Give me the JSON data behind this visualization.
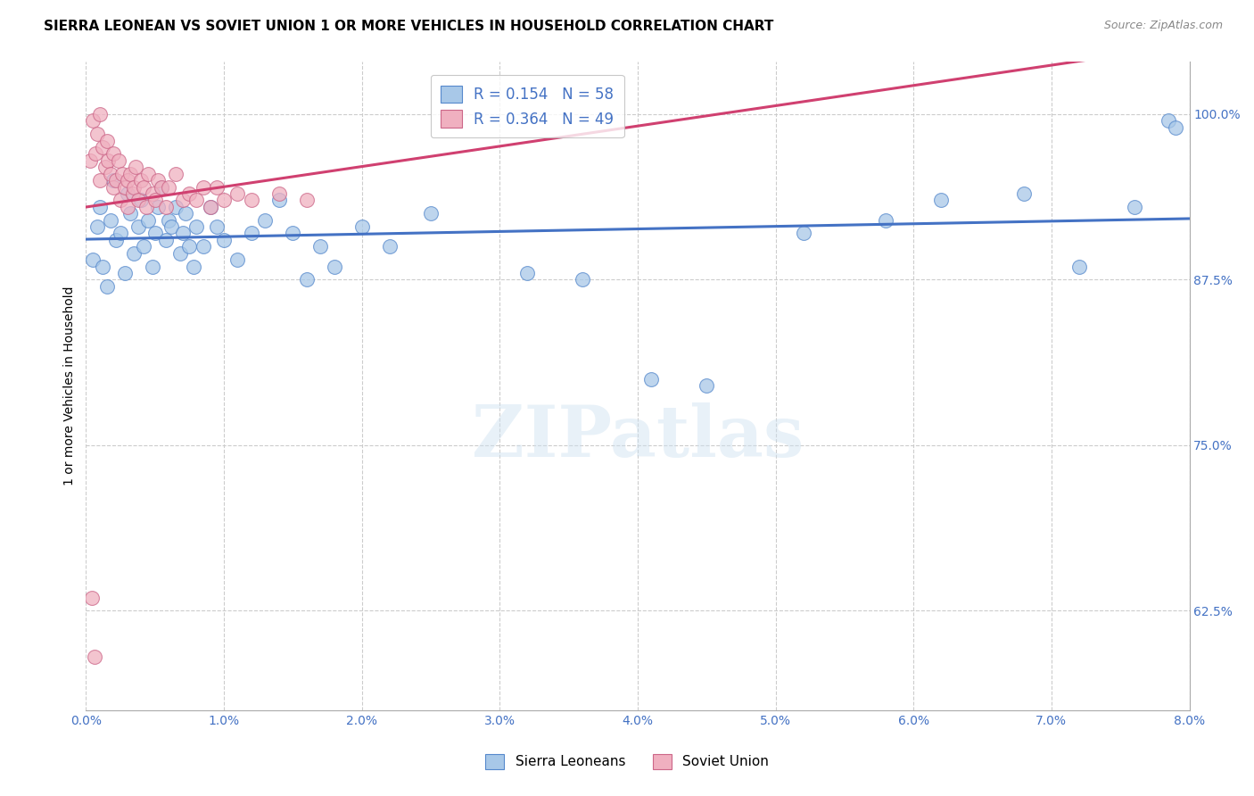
{
  "title": "SIERRA LEONEAN VS SOVIET UNION 1 OR MORE VEHICLES IN HOUSEHOLD CORRELATION CHART",
  "source": "Source: ZipAtlas.com",
  "xlabel_ticks": [
    "0.0%",
    "1.0%",
    "2.0%",
    "3.0%",
    "4.0%",
    "5.0%",
    "6.0%",
    "7.0%",
    "8.0%"
  ],
  "xlabel_vals": [
    0.0,
    1.0,
    2.0,
    3.0,
    4.0,
    5.0,
    6.0,
    7.0,
    8.0
  ],
  "watermark": "ZIPatlas",
  "ylabel": "1 or more Vehicles in Household",
  "blue_R": 0.154,
  "blue_N": 58,
  "pink_R": 0.364,
  "pink_N": 49,
  "blue_color": "#a8c8e8",
  "pink_color": "#f0b0c0",
  "blue_edge_color": "#5588cc",
  "pink_edge_color": "#cc6688",
  "blue_line_color": "#4472c4",
  "pink_line_color": "#d04070",
  "legend_label_blue": "Sierra Leoneans",
  "legend_label_pink": "Soviet Union",
  "blue_scatter_x": [
    0.05,
    0.08,
    0.1,
    0.12,
    0.15,
    0.18,
    0.2,
    0.22,
    0.25,
    0.28,
    0.3,
    0.32,
    0.35,
    0.38,
    0.4,
    0.42,
    0.45,
    0.48,
    0.5,
    0.52,
    0.55,
    0.58,
    0.6,
    0.62,
    0.65,
    0.68,
    0.7,
    0.72,
    0.75,
    0.78,
    0.8,
    0.85,
    0.9,
    0.95,
    1.0,
    1.1,
    1.2,
    1.3,
    1.4,
    1.5,
    1.6,
    1.7,
    1.8,
    2.0,
    2.2,
    2.5,
    3.2,
    3.6,
    4.1,
    4.5,
    5.2,
    5.8,
    6.2,
    6.8,
    7.2,
    7.6,
    7.85,
    7.9
  ],
  "blue_scatter_y": [
    89.0,
    91.5,
    93.0,
    88.5,
    87.0,
    92.0,
    95.0,
    90.5,
    91.0,
    88.0,
    94.0,
    92.5,
    89.5,
    91.5,
    93.5,
    90.0,
    92.0,
    88.5,
    91.0,
    93.0,
    94.5,
    90.5,
    92.0,
    91.5,
    93.0,
    89.5,
    91.0,
    92.5,
    90.0,
    88.5,
    91.5,
    90.0,
    93.0,
    91.5,
    90.5,
    89.0,
    91.0,
    92.0,
    93.5,
    91.0,
    87.5,
    90.0,
    88.5,
    91.5,
    90.0,
    92.5,
    88.0,
    87.5,
    80.0,
    79.5,
    91.0,
    92.0,
    93.5,
    94.0,
    88.5,
    93.0,
    99.5,
    99.0
  ],
  "pink_scatter_x": [
    0.03,
    0.05,
    0.07,
    0.08,
    0.1,
    0.1,
    0.12,
    0.14,
    0.15,
    0.16,
    0.18,
    0.2,
    0.2,
    0.22,
    0.24,
    0.25,
    0.26,
    0.28,
    0.3,
    0.3,
    0.32,
    0.34,
    0.35,
    0.36,
    0.38,
    0.4,
    0.42,
    0.44,
    0.45,
    0.48,
    0.5,
    0.52,
    0.55,
    0.58,
    0.6,
    0.65,
    0.7,
    0.75,
    0.8,
    0.85,
    0.9,
    0.95,
    1.0,
    1.1,
    1.2,
    1.4,
    1.6,
    0.04,
    0.06
  ],
  "pink_scatter_y": [
    96.5,
    99.5,
    97.0,
    98.5,
    95.0,
    100.0,
    97.5,
    96.0,
    98.0,
    96.5,
    95.5,
    94.5,
    97.0,
    95.0,
    96.5,
    93.5,
    95.5,
    94.5,
    93.0,
    95.0,
    95.5,
    94.0,
    94.5,
    96.0,
    93.5,
    95.0,
    94.5,
    93.0,
    95.5,
    94.0,
    93.5,
    95.0,
    94.5,
    93.0,
    94.5,
    95.5,
    93.5,
    94.0,
    93.5,
    94.5,
    93.0,
    94.5,
    93.5,
    94.0,
    93.5,
    94.0,
    93.5,
    63.5,
    59.0
  ],
  "xmin": 0.0,
  "xmax": 8.0,
  "ymin": 55.0,
  "ymax": 104.0,
  "ytick_vals": [
    62.5,
    75.0,
    87.5,
    100.0
  ],
  "ytick_labels": [
    "62.5%",
    "75.0%",
    "87.5%",
    "100.0%"
  ],
  "grid_color": "#cccccc",
  "title_fontsize": 11,
  "tick_label_color": "#4472c4",
  "right_axis_color": "#4472c4"
}
